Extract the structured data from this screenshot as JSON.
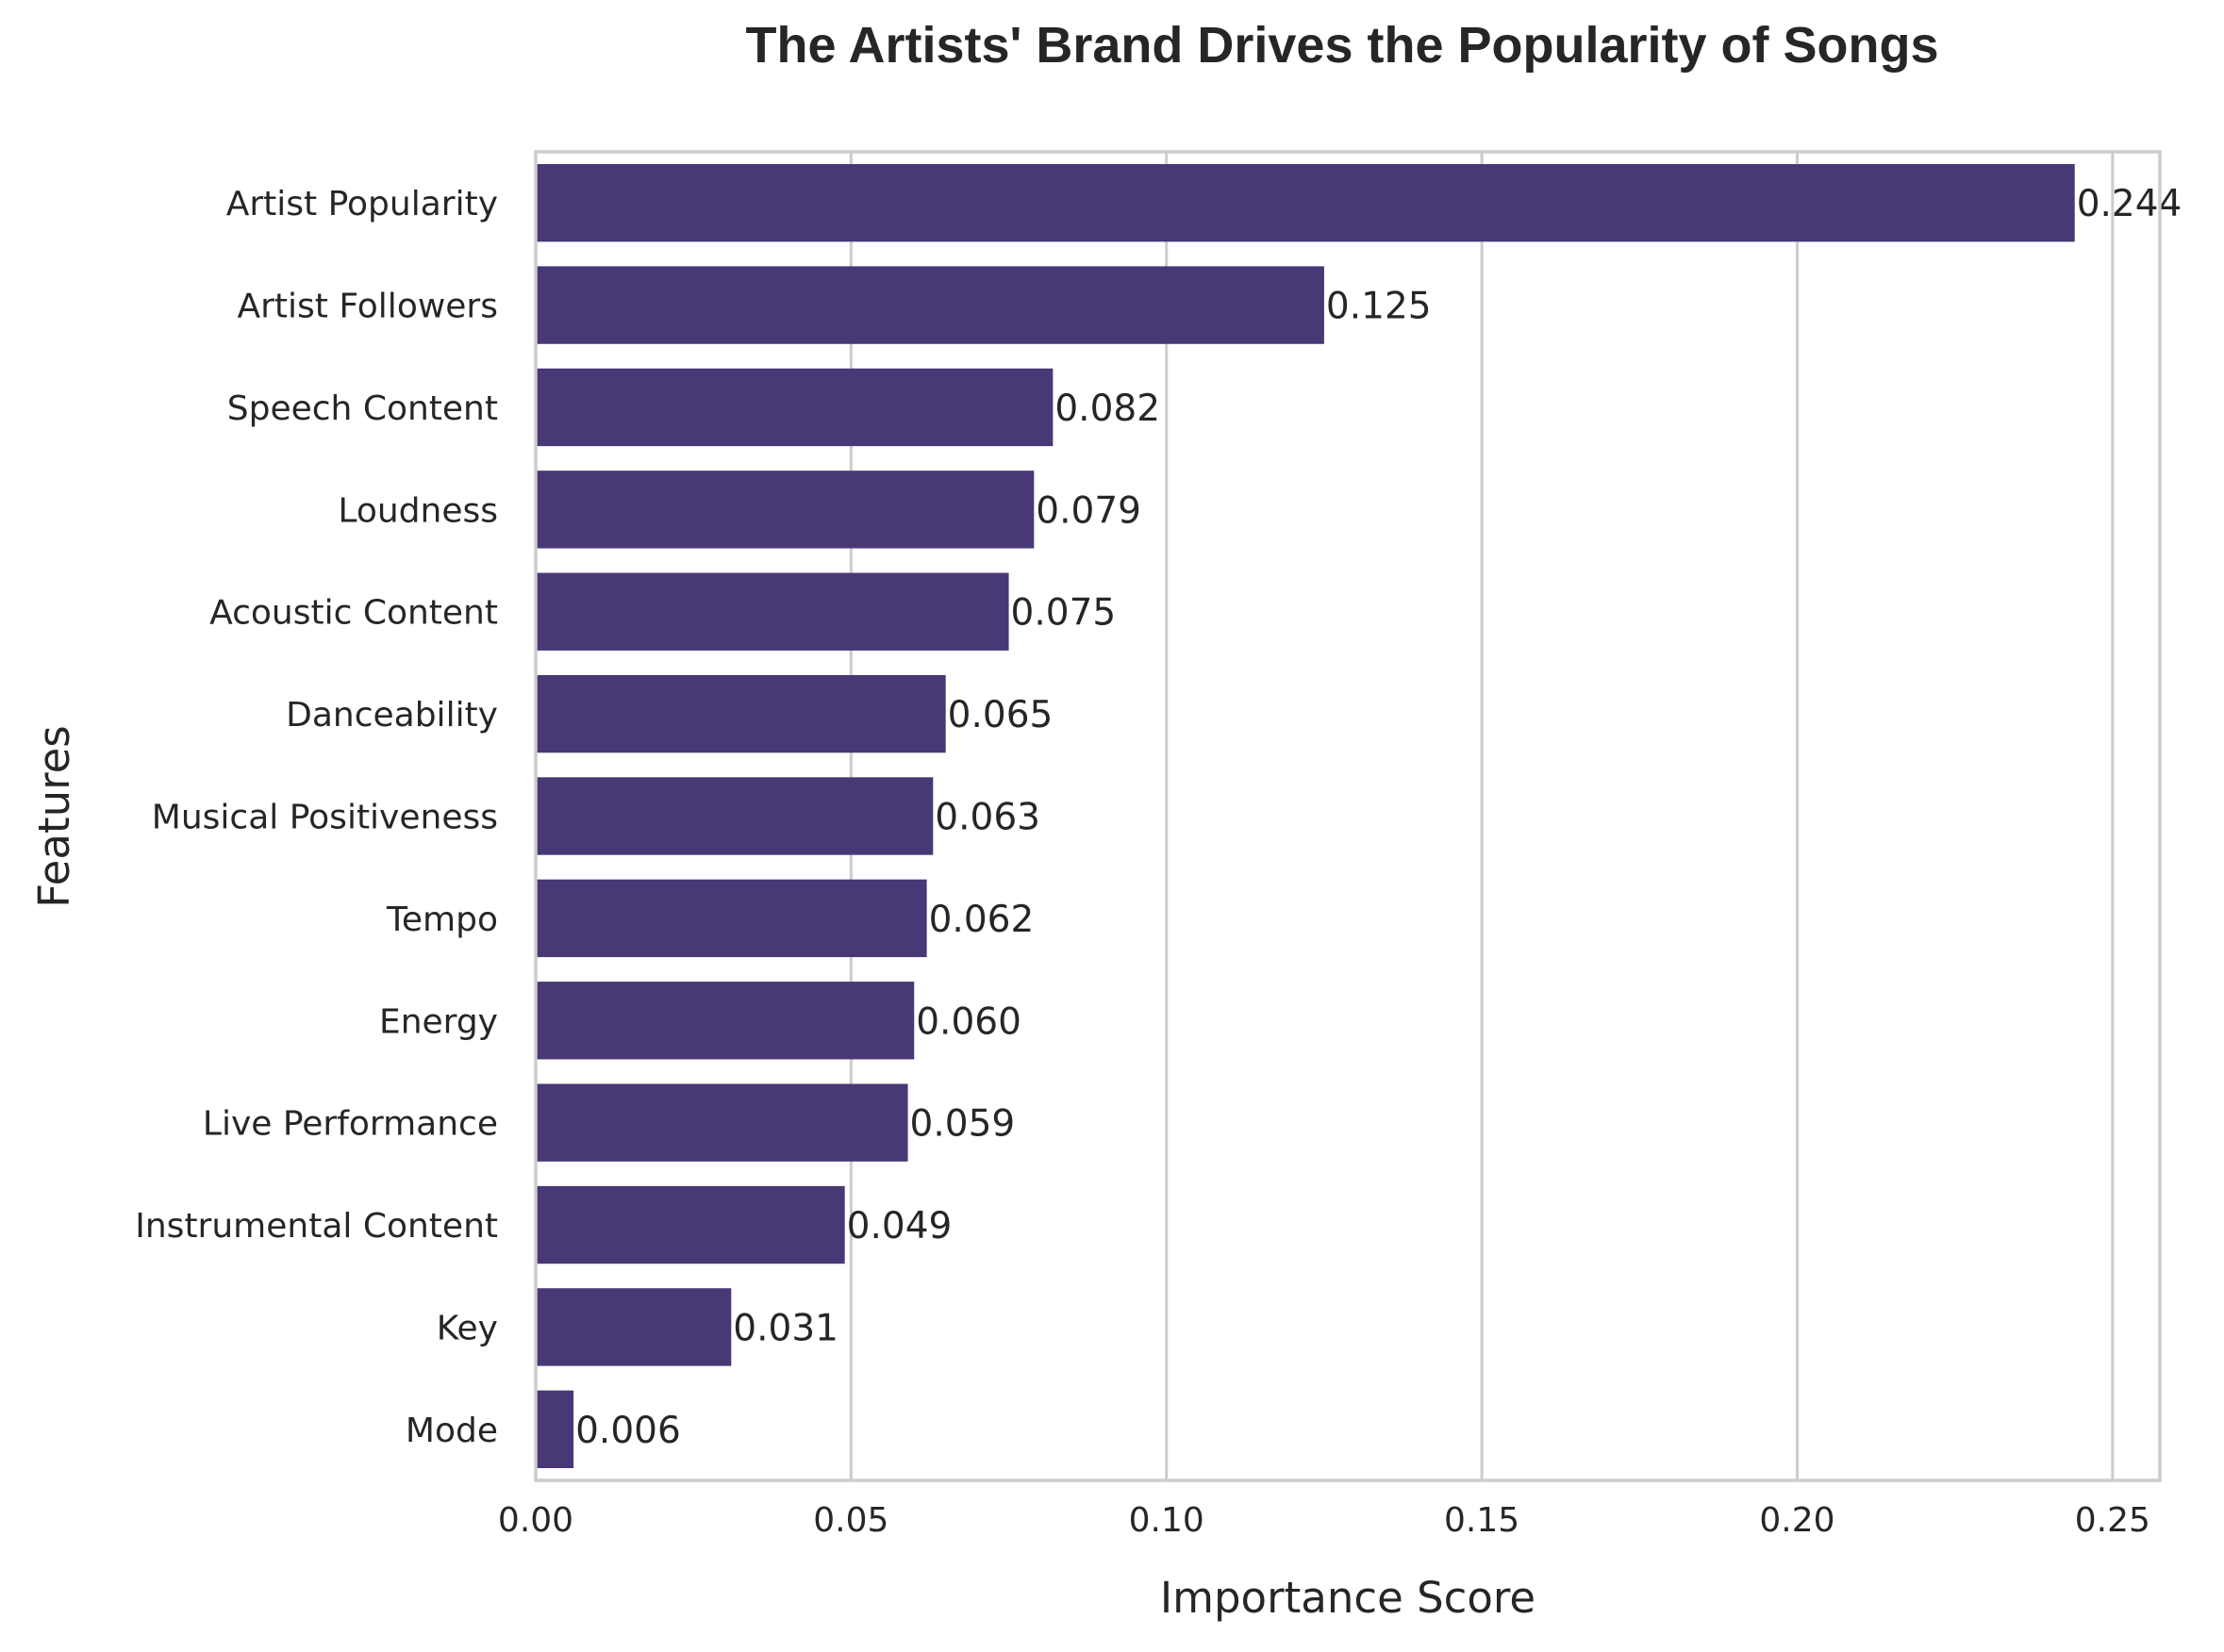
{
  "chart_data": {
    "type": "bar",
    "orientation": "horizontal",
    "title": "The Artists' Brand Drives the Popularity of Songs",
    "xlabel": "Importance Score",
    "ylabel": "Features",
    "categories": [
      "Artist Popularity",
      "Artist Followers",
      "Speech Content",
      "Loudness",
      "Acoustic Content",
      "Danceability",
      "Musical Positiveness",
      "Tempo",
      "Energy",
      "Live Performance",
      "Instrumental Content",
      "Key",
      "Mode"
    ],
    "values": [
      0.244,
      0.125,
      0.082,
      0.079,
      0.075,
      0.065,
      0.063,
      0.062,
      0.06,
      0.059,
      0.049,
      0.031,
      0.006
    ],
    "value_labels": [
      "0.244",
      "0.125",
      "0.082",
      "0.079",
      "0.075",
      "0.065",
      "0.063",
      "0.062",
      "0.060",
      "0.059",
      "0.049",
      "0.031",
      "0.006"
    ],
    "xlim": [
      0,
      0.2575
    ],
    "xticks": [
      0,
      0.05,
      0.1,
      0.15,
      0.2,
      0.25
    ],
    "xtick_labels": [
      "0.00",
      "0.05",
      "0.10",
      "0.15",
      "0.20",
      "0.25"
    ],
    "grid": "vertical",
    "bar_color": "#483875"
  }
}
